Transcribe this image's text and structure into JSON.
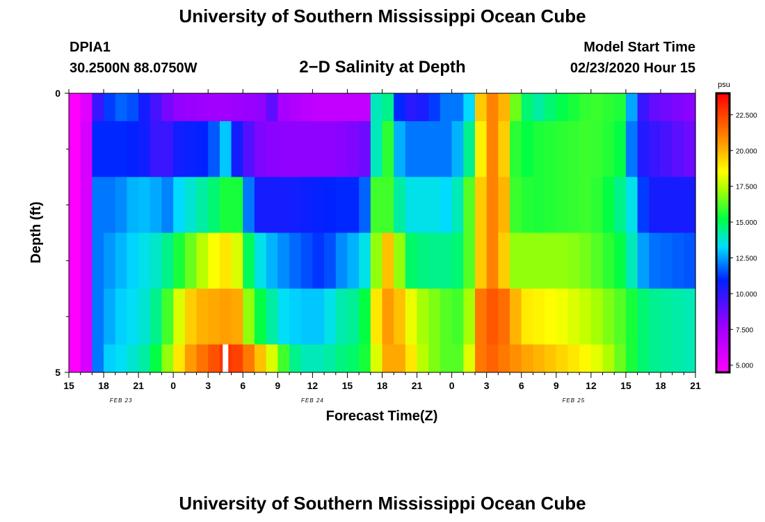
{
  "header": {
    "title": "University of Southern Mississippi Ocean Cube",
    "station": "DPIA1",
    "coords": "30.2500N 88.0750W",
    "subtitle": "2−D Salinity at Depth",
    "start_label": "Model Start Time",
    "start_value": "02/23/2020 Hour 15"
  },
  "footer": {
    "title": "University of Southern Mississippi Ocean Cube"
  },
  "chart_data": {
    "type": "heatmap",
    "title": "2-D Salinity at Depth",
    "xlabel": "Forecast Time(Z)",
    "ylabel": "Depth (ft)",
    "x_start_hour": 15,
    "x_end_hour": 69,
    "x_tick_labels": [
      "15",
      "18",
      "21",
      "0",
      "3",
      "6",
      "9",
      "12",
      "15",
      "18",
      "21",
      "0",
      "3",
      "6",
      "9",
      "12",
      "15",
      "18",
      "21"
    ],
    "date_labels": [
      {
        "text": "FEB 23",
        "hour": 19.5
      },
      {
        "text": "FEB 24",
        "hour": 36
      },
      {
        "text": "FEB 25",
        "hour": 58.5
      }
    ],
    "ylim": [
      0,
      5
    ],
    "y_tick_labels": [
      "0",
      "5"
    ],
    "y_minor_ticks": [
      1,
      2,
      3,
      4
    ],
    "colorbar": {
      "unit": "psu",
      "min": 4.5,
      "max": 24,
      "ticks": [
        "5.000",
        "7.500",
        "10.000",
        "12.500",
        "15.000",
        "17.500",
        "20.000",
        "22.500"
      ]
    },
    "depth_layers": [
      {
        "depth": "0-0.5",
        "knots": [
          [
            15,
            4.5
          ],
          [
            16.3,
            4.5
          ],
          [
            17.2,
            9
          ],
          [
            18,
            11
          ],
          [
            20,
            12
          ],
          [
            22,
            10
          ],
          [
            23,
            9
          ],
          [
            24,
            8
          ],
          [
            28,
            7.5
          ],
          [
            32,
            8
          ],
          [
            32.5,
            9
          ],
          [
            33,
            7.5
          ],
          [
            36,
            6.5
          ],
          [
            41,
            6.5
          ],
          [
            41.2,
            11
          ],
          [
            41.5,
            14
          ],
          [
            41.8,
            16
          ],
          [
            42.5,
            14.5
          ],
          [
            43,
            12
          ],
          [
            44,
            10
          ],
          [
            46,
            10.5
          ],
          [
            47,
            12
          ],
          [
            48,
            12
          ],
          [
            49,
            12
          ],
          [
            49.8,
            14
          ],
          [
            50,
            16
          ],
          [
            50.3,
            19
          ],
          [
            51,
            21
          ],
          [
            52,
            21
          ],
          [
            53,
            19
          ],
          [
            53.3,
            17
          ],
          [
            54,
            15.5
          ],
          [
            55,
            14
          ],
          [
            57,
            15
          ],
          [
            60,
            16
          ],
          [
            63,
            15.5
          ],
          [
            63.4,
            13
          ],
          [
            64,
            10.5
          ],
          [
            65,
            9
          ],
          [
            69,
            8
          ]
        ]
      },
      {
        "depth": "0.5-1.5",
        "knots": [
          [
            15,
            4.5
          ],
          [
            16.3,
            4.5
          ],
          [
            17,
            9
          ],
          [
            17.5,
            11
          ],
          [
            20,
            11
          ],
          [
            22,
            10.5
          ],
          [
            23,
            9
          ],
          [
            24,
            10.5
          ],
          [
            27,
            11
          ],
          [
            27.8,
            12
          ],
          [
            28,
            13
          ],
          [
            28.7,
            13
          ],
          [
            29,
            11
          ],
          [
            30,
            10
          ],
          [
            31,
            8.5
          ],
          [
            33,
            8
          ],
          [
            38,
            8
          ],
          [
            40,
            8.5
          ],
          [
            41.3,
            9
          ],
          [
            41.5,
            14
          ],
          [
            42,
            16
          ],
          [
            43,
            15.5
          ],
          [
            43.3,
            13
          ],
          [
            44,
            12
          ],
          [
            48,
            12
          ],
          [
            49,
            13.5
          ],
          [
            49.8,
            15
          ],
          [
            50.3,
            18
          ],
          [
            51,
            21
          ],
          [
            52,
            21
          ],
          [
            53,
            18
          ],
          [
            53.3,
            16
          ],
          [
            54,
            15
          ],
          [
            55,
            15.5
          ],
          [
            60,
            16
          ],
          [
            62,
            15.5
          ],
          [
            63,
            15
          ],
          [
            63.5,
            12
          ],
          [
            64,
            10.5
          ],
          [
            65,
            10
          ],
          [
            69,
            8.5
          ]
        ]
      },
      {
        "depth": "1.5-2.5",
        "knots": [
          [
            15,
            4.5
          ],
          [
            16.3,
            4.5
          ],
          [
            17,
            9
          ],
          [
            17.5,
            12
          ],
          [
            19,
            12
          ],
          [
            21,
            13
          ],
          [
            23,
            12.5
          ],
          [
            23.7,
            12
          ],
          [
            24,
            13
          ],
          [
            25,
            13.5
          ],
          [
            27,
            14.5
          ],
          [
            28,
            15
          ],
          [
            29,
            16
          ],
          [
            30,
            15
          ],
          [
            30.5,
            12
          ],
          [
            31,
            10.5
          ],
          [
            34,
            10.5
          ],
          [
            38,
            11
          ],
          [
            40,
            11
          ],
          [
            41,
            12.5
          ],
          [
            41.5,
            16
          ],
          [
            42,
            17
          ],
          [
            43,
            15
          ],
          [
            44,
            13.5
          ],
          [
            47,
            13.5
          ],
          [
            48,
            13
          ],
          [
            49,
            15
          ],
          [
            49.8,
            17
          ],
          [
            50.3,
            19
          ],
          [
            51,
            21
          ],
          [
            52,
            21
          ],
          [
            53,
            19
          ],
          [
            53.3,
            16
          ],
          [
            55,
            15.5
          ],
          [
            60,
            16
          ],
          [
            62,
            15
          ],
          [
            63.5,
            13.5
          ],
          [
            64,
            12
          ],
          [
            65,
            10.5
          ],
          [
            69,
            10.5
          ]
        ]
      },
      {
        "depth": "2.5-3.5",
        "knots": [
          [
            15,
            4.5
          ],
          [
            16.3,
            4.5
          ],
          [
            17,
            9
          ],
          [
            17.5,
            12
          ],
          [
            20,
            13
          ],
          [
            23,
            14
          ],
          [
            24,
            15
          ],
          [
            25,
            16
          ],
          [
            26,
            17
          ],
          [
            27,
            18
          ],
          [
            28,
            19
          ],
          [
            29,
            19
          ],
          [
            30,
            17
          ],
          [
            30.5,
            15
          ],
          [
            31,
            14
          ],
          [
            32,
            13
          ],
          [
            34,
            12
          ],
          [
            37,
            11
          ],
          [
            38,
            12
          ],
          [
            40,
            13
          ],
          [
            41,
            14
          ],
          [
            41.5,
            17
          ],
          [
            42,
            19.5
          ],
          [
            43,
            20
          ],
          [
            43.5,
            17
          ],
          [
            44,
            15
          ],
          [
            46,
            14.5
          ],
          [
            48,
            14.5
          ],
          [
            49,
            15
          ],
          [
            49.8,
            17
          ],
          [
            50.3,
            19
          ],
          [
            51,
            21
          ],
          [
            52,
            21
          ],
          [
            53,
            18
          ],
          [
            53.5,
            17
          ],
          [
            55,
            17
          ],
          [
            58,
            17
          ],
          [
            60,
            16.5
          ],
          [
            63,
            15
          ],
          [
            64,
            13
          ],
          [
            65,
            12
          ],
          [
            69,
            11.5
          ]
        ]
      },
      {
        "depth": "3.5-4.5",
        "knots": [
          [
            15,
            4.5
          ],
          [
            16.3,
            4.5
          ],
          [
            17,
            9
          ],
          [
            17.5,
            12
          ],
          [
            19,
            13
          ],
          [
            21,
            13.5
          ],
          [
            22,
            14
          ],
          [
            23,
            15
          ],
          [
            24,
            17
          ],
          [
            25,
            19
          ],
          [
            26,
            20
          ],
          [
            29,
            20.5
          ],
          [
            30,
            20
          ],
          [
            30.5,
            17
          ],
          [
            31,
            15.5
          ],
          [
            32,
            15
          ],
          [
            33,
            13.5
          ],
          [
            35,
            13
          ],
          [
            37,
            13
          ],
          [
            38,
            14
          ],
          [
            40,
            14.5
          ],
          [
            41,
            16
          ],
          [
            41.5,
            19
          ],
          [
            42,
            20.5
          ],
          [
            43,
            20.5
          ],
          [
            44,
            19
          ],
          [
            45,
            17.5
          ],
          [
            46,
            17
          ],
          [
            47,
            16.5
          ],
          [
            48,
            16
          ],
          [
            49,
            16
          ],
          [
            49.8,
            18
          ],
          [
            50.3,
            21
          ],
          [
            51,
            22
          ],
          [
            52,
            22
          ],
          [
            53,
            21
          ],
          [
            53.5,
            20
          ],
          [
            54,
            19
          ],
          [
            57,
            18.5
          ],
          [
            60,
            17.5
          ],
          [
            62,
            16.5
          ],
          [
            63,
            16
          ],
          [
            64,
            15
          ],
          [
            65,
            14.5
          ],
          [
            69,
            14
          ]
        ]
      },
      {
        "depth": "4.5-5",
        "knots": [
          [
            15,
            4.5
          ],
          [
            16.3,
            4.5
          ],
          [
            17,
            9
          ],
          [
            17.5,
            12
          ],
          [
            18,
            13
          ],
          [
            20,
            13.5
          ],
          [
            22,
            14.5
          ],
          [
            23,
            16
          ],
          [
            24,
            18
          ],
          [
            25,
            20
          ],
          [
            26,
            21
          ],
          [
            28,
            22.5
          ],
          [
            28.7,
            23
          ],
          [
            29,
            23
          ],
          [
            30,
            22
          ],
          [
            31,
            20.5
          ],
          [
            32,
            19
          ],
          [
            33,
            17
          ],
          [
            34,
            15
          ],
          [
            35,
            14
          ],
          [
            37,
            14
          ],
          [
            38,
            14.5
          ],
          [
            40,
            15
          ],
          [
            41,
            16
          ],
          [
            42,
            20
          ],
          [
            43,
            20.5
          ],
          [
            44,
            20
          ],
          [
            45,
            18
          ],
          [
            46,
            17
          ],
          [
            47,
            16.5
          ],
          [
            48,
            16
          ],
          [
            49,
            16.5
          ],
          [
            49.8,
            19
          ],
          [
            50.3,
            21
          ],
          [
            51,
            22
          ],
          [
            52,
            21.5
          ],
          [
            53,
            21
          ],
          [
            54,
            20.5
          ],
          [
            57,
            19.5
          ],
          [
            60,
            18.5
          ],
          [
            62,
            17
          ],
          [
            63,
            16
          ],
          [
            64,
            15
          ],
          [
            65,
            14.5
          ],
          [
            69,
            14
          ]
        ]
      }
    ],
    "missing_value_hour": 28.5
  }
}
